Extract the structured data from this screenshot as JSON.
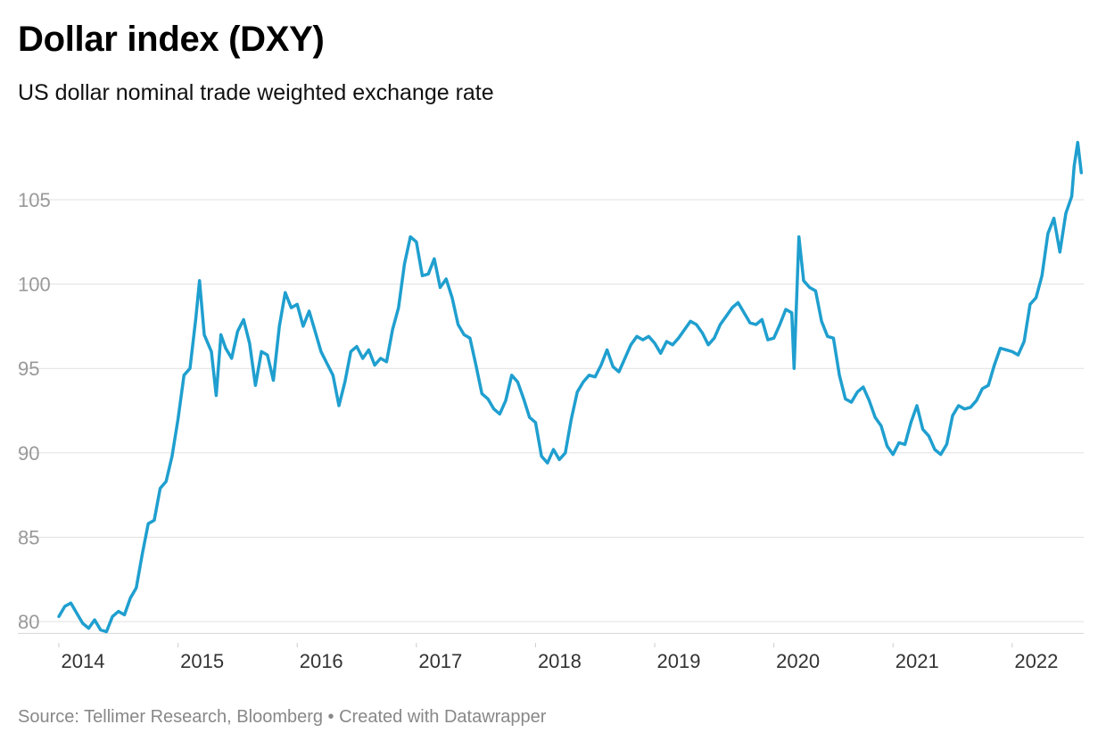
{
  "chart_data": {
    "type": "line",
    "title": "Dollar index (DXY)",
    "subtitle": "US dollar nominal trade weighted exchange rate",
    "source": "Source: Tellimer Research, Bloomberg • Created with Datawrapper",
    "xlabel": "",
    "ylabel": "",
    "x_ticks": [
      "2014",
      "2015",
      "2016",
      "2017",
      "2018",
      "2019",
      "2020",
      "2021",
      "2022"
    ],
    "y_ticks": [
      80,
      85,
      90,
      95,
      100,
      105
    ],
    "ylim": [
      79,
      108.7
    ],
    "xlim": [
      2014.0,
      2022.6
    ],
    "grid": true,
    "legend": "none",
    "series": [
      {
        "color": "#1f9fcf",
        "points": [
          [
            2014.0,
            80.3
          ],
          [
            2014.05,
            80.9
          ],
          [
            2014.1,
            81.1
          ],
          [
            2014.15,
            80.5
          ],
          [
            2014.2,
            79.9
          ],
          [
            2014.25,
            79.6
          ],
          [
            2014.3,
            80.1
          ],
          [
            2014.35,
            79.5
          ],
          [
            2014.4,
            79.4
          ],
          [
            2014.45,
            80.3
          ],
          [
            2014.5,
            80.6
          ],
          [
            2014.55,
            80.4
          ],
          [
            2014.6,
            81.4
          ],
          [
            2014.65,
            82.0
          ],
          [
            2014.7,
            84.0
          ],
          [
            2014.75,
            85.8
          ],
          [
            2014.8,
            86.0
          ],
          [
            2014.85,
            87.9
          ],
          [
            2014.9,
            88.3
          ],
          [
            2014.95,
            89.8
          ],
          [
            2015.0,
            92.0
          ],
          [
            2015.05,
            94.6
          ],
          [
            2015.1,
            95.0
          ],
          [
            2015.15,
            98.0
          ],
          [
            2015.18,
            100.2
          ],
          [
            2015.22,
            97.0
          ],
          [
            2015.28,
            96.0
          ],
          [
            2015.32,
            93.4
          ],
          [
            2015.36,
            97.0
          ],
          [
            2015.4,
            96.2
          ],
          [
            2015.45,
            95.6
          ],
          [
            2015.5,
            97.2
          ],
          [
            2015.55,
            97.9
          ],
          [
            2015.6,
            96.5
          ],
          [
            2015.65,
            94.0
          ],
          [
            2015.7,
            96.0
          ],
          [
            2015.75,
            95.8
          ],
          [
            2015.8,
            94.3
          ],
          [
            2015.85,
            97.5
          ],
          [
            2015.9,
            99.5
          ],
          [
            2015.95,
            98.6
          ],
          [
            2016.0,
            98.8
          ],
          [
            2016.05,
            97.5
          ],
          [
            2016.1,
            98.4
          ],
          [
            2016.15,
            97.2
          ],
          [
            2016.2,
            96.0
          ],
          [
            2016.25,
            95.3
          ],
          [
            2016.3,
            94.6
          ],
          [
            2016.35,
            92.8
          ],
          [
            2016.4,
            94.2
          ],
          [
            2016.45,
            96.0
          ],
          [
            2016.5,
            96.3
          ],
          [
            2016.55,
            95.6
          ],
          [
            2016.6,
            96.1
          ],
          [
            2016.65,
            95.2
          ],
          [
            2016.7,
            95.6
          ],
          [
            2016.75,
            95.4
          ],
          [
            2016.8,
            97.3
          ],
          [
            2016.85,
            98.6
          ],
          [
            2016.9,
            101.2
          ],
          [
            2016.95,
            102.8
          ],
          [
            2017.0,
            102.5
          ],
          [
            2017.05,
            100.5
          ],
          [
            2017.1,
            100.6
          ],
          [
            2017.15,
            101.5
          ],
          [
            2017.2,
            99.8
          ],
          [
            2017.25,
            100.3
          ],
          [
            2017.3,
            99.2
          ],
          [
            2017.35,
            97.6
          ],
          [
            2017.4,
            97.0
          ],
          [
            2017.45,
            96.8
          ],
          [
            2017.5,
            95.2
          ],
          [
            2017.55,
            93.5
          ],
          [
            2017.6,
            93.2
          ],
          [
            2017.65,
            92.6
          ],
          [
            2017.7,
            92.3
          ],
          [
            2017.75,
            93.1
          ],
          [
            2017.8,
            94.6
          ],
          [
            2017.85,
            94.2
          ],
          [
            2017.9,
            93.2
          ],
          [
            2017.95,
            92.1
          ],
          [
            2018.0,
            91.8
          ],
          [
            2018.05,
            89.8
          ],
          [
            2018.1,
            89.4
          ],
          [
            2018.15,
            90.2
          ],
          [
            2018.2,
            89.6
          ],
          [
            2018.25,
            90.0
          ],
          [
            2018.3,
            92.0
          ],
          [
            2018.35,
            93.6
          ],
          [
            2018.4,
            94.2
          ],
          [
            2018.45,
            94.6
          ],
          [
            2018.5,
            94.5
          ],
          [
            2018.55,
            95.2
          ],
          [
            2018.6,
            96.1
          ],
          [
            2018.65,
            95.1
          ],
          [
            2018.7,
            94.8
          ],
          [
            2018.75,
            95.6
          ],
          [
            2018.8,
            96.4
          ],
          [
            2018.85,
            96.9
          ],
          [
            2018.9,
            96.7
          ],
          [
            2018.95,
            96.9
          ],
          [
            2019.0,
            96.5
          ],
          [
            2019.05,
            95.9
          ],
          [
            2019.1,
            96.6
          ],
          [
            2019.15,
            96.4
          ],
          [
            2019.2,
            96.8
          ],
          [
            2019.25,
            97.3
          ],
          [
            2019.3,
            97.8
          ],
          [
            2019.35,
            97.6
          ],
          [
            2019.4,
            97.1
          ],
          [
            2019.45,
            96.4
          ],
          [
            2019.5,
            96.8
          ],
          [
            2019.55,
            97.6
          ],
          [
            2019.6,
            98.1
          ],
          [
            2019.65,
            98.6
          ],
          [
            2019.7,
            98.9
          ],
          [
            2019.75,
            98.3
          ],
          [
            2019.8,
            97.7
          ],
          [
            2019.85,
            97.6
          ],
          [
            2019.9,
            97.9
          ],
          [
            2019.95,
            96.7
          ],
          [
            2020.0,
            96.8
          ],
          [
            2020.05,
            97.6
          ],
          [
            2020.1,
            98.5
          ],
          [
            2020.15,
            98.3
          ],
          [
            2020.17,
            95.0
          ],
          [
            2020.21,
            102.8
          ],
          [
            2020.25,
            100.2
          ],
          [
            2020.3,
            99.8
          ],
          [
            2020.35,
            99.6
          ],
          [
            2020.4,
            97.8
          ],
          [
            2020.45,
            96.9
          ],
          [
            2020.5,
            96.8
          ],
          [
            2020.55,
            94.6
          ],
          [
            2020.6,
            93.2
          ],
          [
            2020.65,
            93.0
          ],
          [
            2020.7,
            93.6
          ],
          [
            2020.75,
            93.9
          ],
          [
            2020.8,
            93.1
          ],
          [
            2020.85,
            92.1
          ],
          [
            2020.9,
            91.6
          ],
          [
            2020.95,
            90.4
          ],
          [
            2021.0,
            89.9
          ],
          [
            2021.05,
            90.6
          ],
          [
            2021.1,
            90.5
          ],
          [
            2021.15,
            91.8
          ],
          [
            2021.2,
            92.8
          ],
          [
            2021.25,
            91.4
          ],
          [
            2021.3,
            91.0
          ],
          [
            2021.35,
            90.2
          ],
          [
            2021.4,
            89.9
          ],
          [
            2021.45,
            90.5
          ],
          [
            2021.5,
            92.2
          ],
          [
            2021.55,
            92.8
          ],
          [
            2021.6,
            92.6
          ],
          [
            2021.65,
            92.7
          ],
          [
            2021.7,
            93.1
          ],
          [
            2021.75,
            93.8
          ],
          [
            2021.8,
            94.0
          ],
          [
            2021.85,
            95.2
          ],
          [
            2021.9,
            96.2
          ],
          [
            2021.95,
            96.1
          ],
          [
            2022.0,
            96.0
          ],
          [
            2022.05,
            95.8
          ],
          [
            2022.1,
            96.6
          ],
          [
            2022.15,
            98.8
          ],
          [
            2022.2,
            99.2
          ],
          [
            2022.25,
            100.5
          ],
          [
            2022.3,
            103.0
          ],
          [
            2022.35,
            103.9
          ],
          [
            2022.4,
            101.9
          ],
          [
            2022.45,
            104.2
          ],
          [
            2022.5,
            105.2
          ],
          [
            2022.52,
            107.0
          ],
          [
            2022.55,
            108.4
          ],
          [
            2022.58,
            106.6
          ]
        ]
      }
    ]
  }
}
